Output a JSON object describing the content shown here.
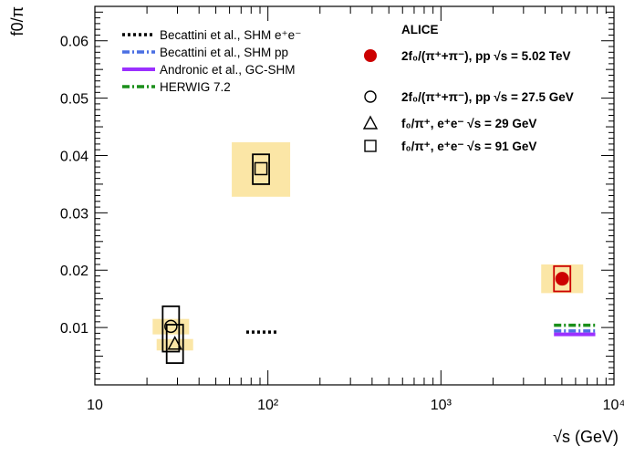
{
  "chart_data": {
    "type": "scatter",
    "title": "",
    "xlabel": "√s (GeV)",
    "ylabel": "f0/π",
    "x_scale": "log",
    "xlim": [
      10,
      10000
    ],
    "ylim": [
      0,
      0.066
    ],
    "x_ticks": [
      {
        "value": 10,
        "label": "10"
      },
      {
        "value": 100,
        "label": "10²"
      },
      {
        "value": 1000,
        "label": "10³"
      },
      {
        "value": 10000,
        "label": "10⁴"
      }
    ],
    "y_ticks": [
      {
        "value": 0.01,
        "label": "0.01"
      },
      {
        "value": 0.02,
        "label": "0.02"
      },
      {
        "value": 0.03,
        "label": "0.03"
      },
      {
        "value": 0.04,
        "label": "0.04"
      },
      {
        "value": 0.05,
        "label": "0.05"
      },
      {
        "value": 0.06,
        "label": "0.06"
      }
    ],
    "legend_header": "ALICE",
    "legend_left": [
      {
        "name": "Becattini et al., SHM e⁺e⁻",
        "style": "dotted",
        "color": "#000000"
      },
      {
        "name": "Becattini et al., SHM pp",
        "style": "dashdot",
        "color": "#4a6fe3"
      },
      {
        "name": "Andronic et al., GC-SHM",
        "style": "solid",
        "color": "#9b30ff"
      },
      {
        "name": "HERWIG 7.2",
        "style": "dashdot",
        "color": "#1a8f1a"
      }
    ],
    "legend_right": [
      {
        "name": "2f₀/(π⁺+π⁻), pp √s = 5.02 TeV",
        "marker": "filled-circle",
        "color": "#cc0000"
      },
      {
        "name": "2f₀/(π⁺+π⁻), pp √s = 27.5 GeV",
        "marker": "open-circle",
        "color": "#000000"
      },
      {
        "name": "f₀/π⁺, e⁺e⁻ √s = 29 GeV",
        "marker": "open-triangle",
        "color": "#000000"
      },
      {
        "name": "f₀/π⁺, e⁺e⁻ √s = 91 GeV",
        "marker": "open-square",
        "color": "#000000"
      }
    ],
    "series": [
      {
        "name": "2f₀/(π⁺+π⁻), pp √s = 5.02 TeV",
        "marker": "filled-circle",
        "color": "#cc0000",
        "points": [
          {
            "x": 5020,
            "y": 0.0185,
            "stat_y": [
              0.0163,
              0.0207
            ],
            "syst_y": [
              0.0163,
              0.0207
            ],
            "band_y": [
              0.016,
              0.021
            ]
          }
        ]
      },
      {
        "name": "2f₀/(π⁺+π⁻), pp √s = 27.5 GeV",
        "marker": "open-circle",
        "color": "#000000",
        "points": [
          {
            "x": 27.5,
            "y": 0.0102,
            "stat_y": [
              0.0058,
              0.0137
            ],
            "syst_y": [
              0.0058,
              0.0137
            ],
            "band_y": [
              0.0088,
              0.0115
            ]
          }
        ]
      },
      {
        "name": "f₀/π⁺, e⁺e⁻ √s = 29 GeV",
        "marker": "open-triangle",
        "color": "#000000",
        "points": [
          {
            "x": 29,
            "y": 0.0072,
            "stat_y": [
              0.0038,
              0.0105
            ],
            "syst_y": [
              0.0038,
              0.0105
            ],
            "band_y": [
              0.006,
              0.008
            ]
          }
        ]
      },
      {
        "name": "f₀/π⁺, e⁺e⁻ √s = 91 GeV",
        "marker": "open-square",
        "color": "#000000",
        "points": [
          {
            "x": 91.2,
            "y": 0.0377,
            "stat_y": [
              0.035,
              0.0402
            ],
            "syst_y": [
              0.035,
              0.0402
            ],
            "band_y": [
              0.0328,
              0.0423
            ]
          }
        ]
      }
    ],
    "models": [
      {
        "name": "Becattini et al., SHM e⁺e⁻",
        "style": "dotted",
        "color": "#000000",
        "x": [
          75,
          115
        ],
        "y": 0.0092
      },
      {
        "name": "Becattini et al., SHM pp",
        "style": "dashdot",
        "color": "#4a6fe3",
        "x": [
          4500,
          7800
        ],
        "y": 0.0094
      },
      {
        "name": "Andronic et al., GC-SHM",
        "style": "solid",
        "color": "#9b30ff",
        "x": [
          4500,
          7800
        ],
        "y": 0.0088
      },
      {
        "name": "HERWIG 7.2",
        "style": "dashdot",
        "color": "#1a8f1a",
        "x": [
          4500,
          7800
        ],
        "y": 0.0104
      }
    ],
    "band_color": "#fbe6a6",
    "grid": false
  }
}
